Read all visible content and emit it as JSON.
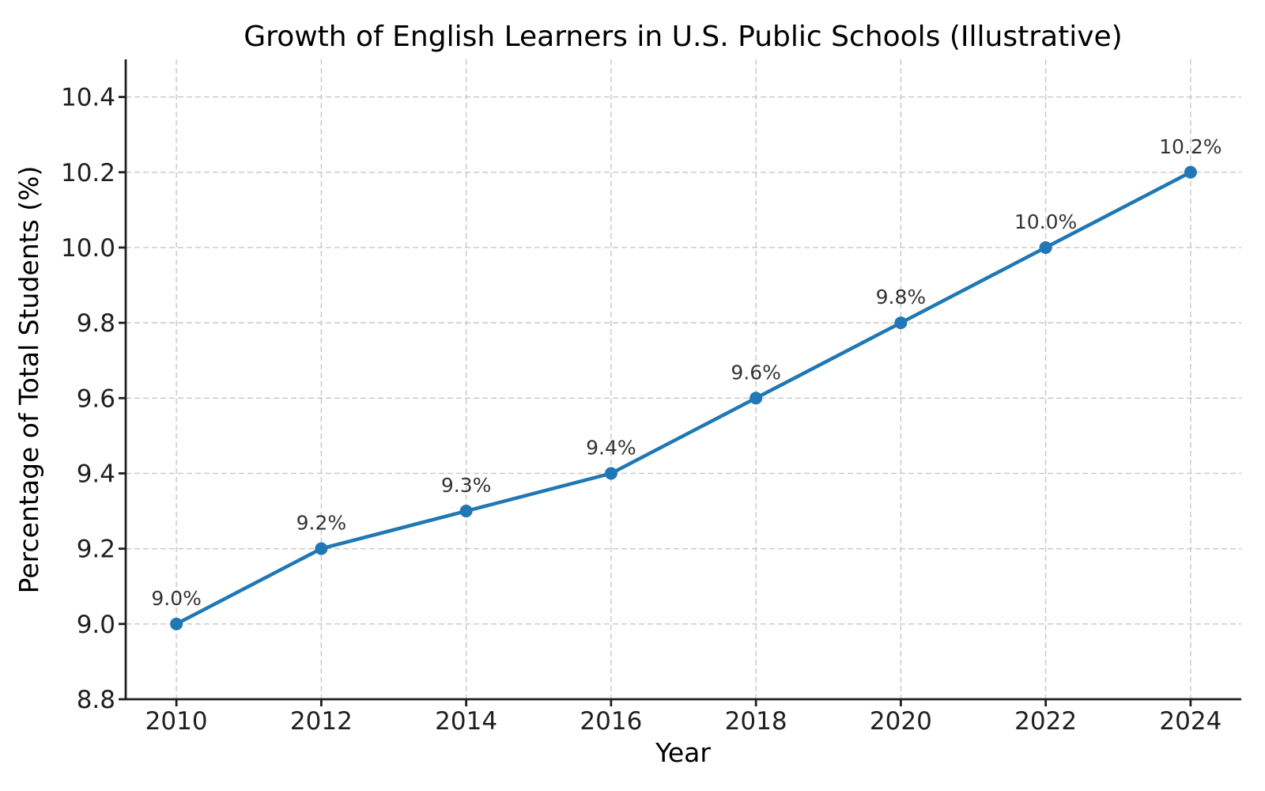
{
  "chart_data": {
    "type": "line",
    "title": "Growth of English Learners in U.S. Public Schools (Illustrative)",
    "xlabel": "Year",
    "ylabel": "Percentage of Total Students (%)",
    "x": [
      2010,
      2012,
      2014,
      2016,
      2018,
      2020,
      2022,
      2024
    ],
    "values": [
      9.0,
      9.2,
      9.3,
      9.4,
      9.6,
      9.8,
      10.0,
      10.2
    ],
    "point_labels": [
      "9.0%",
      "9.2%",
      "9.3%",
      "9.4%",
      "9.6%",
      "9.8%",
      "10.0%",
      "10.2%"
    ],
    "xticks": [
      2010,
      2012,
      2014,
      2016,
      2018,
      2020,
      2022,
      2024
    ],
    "xtick_labels": [
      "2010",
      "2012",
      "2014",
      "2016",
      "2018",
      "2020",
      "2022",
      "2024"
    ],
    "yticks": [
      8.8,
      9.0,
      9.2,
      9.4,
      9.6,
      9.8,
      10.0,
      10.2,
      10.4
    ],
    "ytick_labels": [
      "8.8",
      "9.0",
      "9.2",
      "9.4",
      "9.6",
      "9.8",
      "10.0",
      "10.2",
      "10.4"
    ],
    "xlim": [
      2009.3,
      2024.7
    ],
    "ylim": [
      8.8,
      10.5
    ],
    "grid": true,
    "legend": false,
    "line_color": "#1f77b4",
    "marker_color": "#1f77b4",
    "grid_color": "#c7c7c7",
    "spine_color": "#1f1f1f",
    "text_color": "#1f1f1f",
    "annotation_color": "#333333",
    "background_color": "#ffffff"
  }
}
